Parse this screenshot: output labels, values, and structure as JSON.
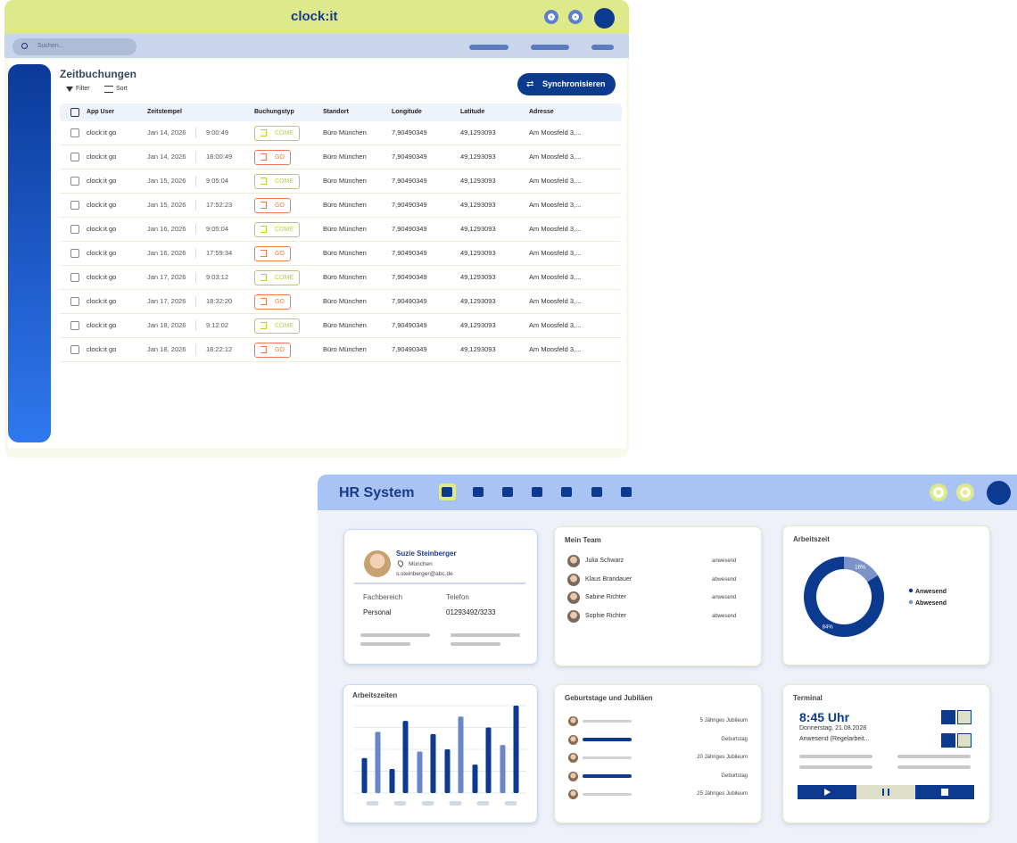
{
  "clockit": {
    "brand": "clock:it",
    "search_placeholder": "Suchen...",
    "title": "Zeitbuchungen",
    "filter": "Filter",
    "sort": "Sort",
    "sync_button": "Synchronisieren",
    "columns": [
      "App User",
      "Zeitstempel",
      "Buchungstyp",
      "Standort",
      "Longitude",
      "Latitude",
      "Adresse"
    ],
    "badge_colors": {
      "COME": "#b5d334",
      "GO": "#ee7b4d"
    },
    "rows": [
      [
        "clock:it go",
        "Jan 14, 2026",
        "9:00:49",
        "COME",
        "Büro München",
        "7,90490349",
        "49,1293093",
        "Am Moosfeld 3,..."
      ],
      [
        "clock:it go",
        "Jan 14, 2026",
        "18:00:49",
        "GO",
        "Büro München",
        "7,90490349",
        "49,1293093",
        "Am Moosfeld 3,..."
      ],
      [
        "clock:it go",
        "Jan 15, 2026",
        "9:05:04",
        "COME",
        "Büro München",
        "7,90490349",
        "49,1293093",
        "Am Moosfeld 3,..."
      ],
      [
        "clock:it go",
        "Jan 15, 2026",
        "17:52:23",
        "GO",
        "Büro München",
        "7,90490349",
        "49,1293093",
        "Am Moosfeld 3,..."
      ],
      [
        "clock:it go",
        "Jan 16, 2026",
        "9:05:04",
        "COME",
        "Büro München",
        "7,90490349",
        "49,1293093",
        "Am Moosfeld 3,..."
      ],
      [
        "clock:it go",
        "Jan 16, 2026",
        "17:59:34",
        "GO",
        "Büro München",
        "7,90490349",
        "49,1293093",
        "Am Moosfeld 3,..."
      ],
      [
        "clock:it go",
        "Jan 17, 2026",
        "9:03:12",
        "COME",
        "Büro München",
        "7,90490349",
        "49,1293093",
        "Am Moosfeld 3,..."
      ],
      [
        "clock:it go",
        "Jan 17, 2026",
        "18:32:20",
        "GO",
        "Büro München",
        "7,90490349",
        "49,1293093",
        "Am Moosfeld 3,..."
      ],
      [
        "clock:it go",
        "Jan 18, 2026",
        "9:12:02",
        "COME",
        "Büro München",
        "7,90490349",
        "49,1293093",
        "Am Moosfeld 3,..."
      ],
      [
        "clock:it go",
        "Jan 18, 2026",
        "18:22:12",
        "GO",
        "Büro München",
        "7,90490349",
        "49,1293093",
        "Am Moosfeld 3,..."
      ]
    ]
  },
  "hr": {
    "title": "HR System",
    "profile": {
      "name": "Suzie Steinberger",
      "city": "München",
      "email": "s.steinberger@abc.de",
      "fields": [
        {
          "label": "Fachbereich",
          "value": "Personal"
        },
        {
          "label": "Telefon",
          "value": "01293492/3233"
        }
      ]
    },
    "team": {
      "title": "Mein Team",
      "members": [
        {
          "name": "Julia Schwarz",
          "status": "anwesend"
        },
        {
          "name": "Klaus Brandauer",
          "status": "abwesend"
        },
        {
          "name": "Sabine Richter",
          "status": "anwesend"
        },
        {
          "name": "Sophie Richter",
          "status": "abwesend"
        }
      ]
    },
    "events": {
      "title": "Geburtstage und Jubiläen",
      "items": [
        "5 Jähriges Jubileum",
        "Geburtstag",
        "20 Jähriges Jubileum",
        "Geburtstag",
        "25 Jähriges Jubileum"
      ]
    },
    "terminal": {
      "title": "Terminal",
      "time": "8:45 Uhr",
      "date": "Donnerstag, 21.08.2028",
      "status": "Anwesend (Regelarbeit..."
    }
  },
  "chart_data": [
    {
      "type": "pie",
      "title": "Arbeitszeit",
      "categories": [
        "Anwesend",
        "Abwesend"
      ],
      "values": [
        84,
        16
      ],
      "value_labels": [
        "84%",
        "16%"
      ],
      "colors": [
        "#0b3a8f",
        "#7b93c9"
      ]
    },
    {
      "type": "bar",
      "title": "Arbeitszeiten",
      "categories": [
        null,
        null,
        null,
        null,
        null,
        null
      ],
      "series": [
        {
          "values": [
            1.6,
            1.1,
            1.9,
            2.0,
            1.3,
            2.2
          ],
          "colors": [
            "#0b3a8f",
            "#0b3a8f",
            "#6a86c8",
            "#0b3a8f",
            "#0b3a8f",
            "#6a86c8"
          ]
        },
        {
          "values": [
            2.8,
            3.3,
            2.7,
            3.5,
            3.0,
            4.0
          ],
          "colors": [
            "#6a86c8",
            "#0b3a8f",
            "#0b3a8f",
            "#6a86c8",
            "#0b3a8f",
            "#0b3a8f"
          ]
        }
      ],
      "ylim": [
        0,
        4
      ],
      "yticks": [
        0,
        1,
        2,
        3,
        4
      ],
      "grid": true
    }
  ]
}
